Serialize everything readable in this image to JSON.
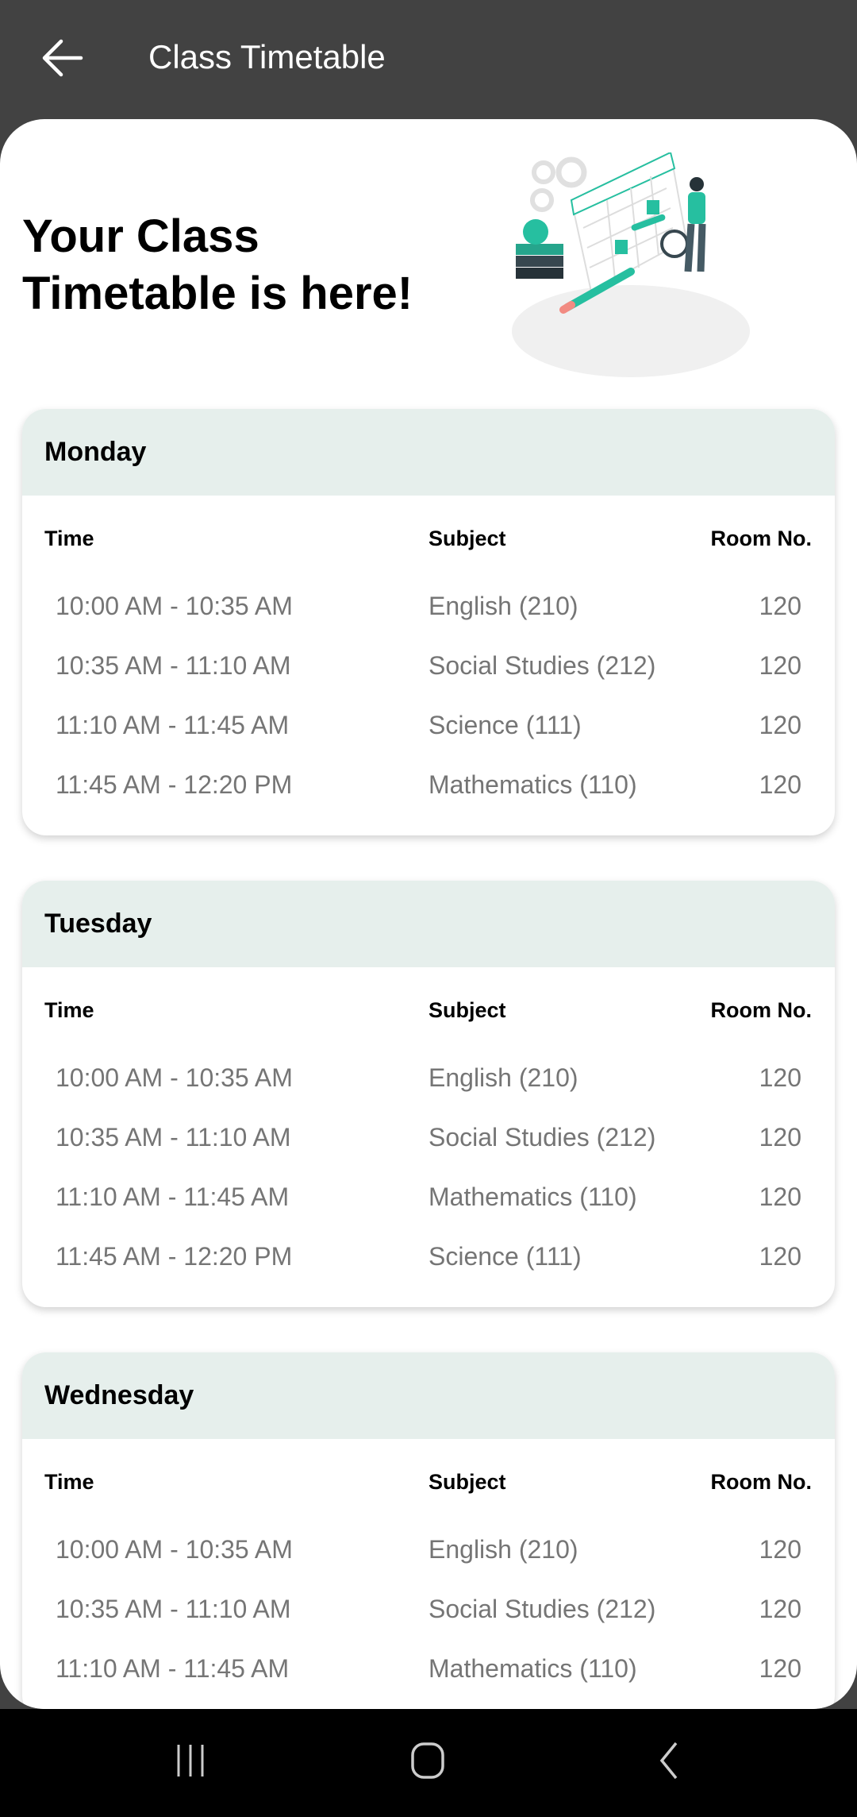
{
  "appbar": {
    "title": "Class Timetable",
    "back_icon": "arrow-left-icon"
  },
  "hero": {
    "line1": "Your Class",
    "line2": "Timetable is here!",
    "illustration": "calendar-schedule-illustration"
  },
  "columns": {
    "time": "Time",
    "subject": "Subject",
    "room": "Room No."
  },
  "days": [
    {
      "name": "Monday",
      "rows": [
        {
          "time": "10:00 AM - 10:35 AM",
          "subject": "English (210)",
          "room": "120"
        },
        {
          "time": "10:35 AM - 11:10 AM",
          "subject": "Social Studies (212)",
          "room": "120"
        },
        {
          "time": "11:10 AM - 11:45 AM",
          "subject": "Science (111)",
          "room": "120"
        },
        {
          "time": "11:45 AM - 12:20 PM",
          "subject": "Mathematics (110)",
          "room": "120"
        }
      ]
    },
    {
      "name": "Tuesday",
      "rows": [
        {
          "time": "10:00 AM - 10:35 AM",
          "subject": "English (210)",
          "room": "120"
        },
        {
          "time": "10:35 AM - 11:10 AM",
          "subject": "Social Studies (212)",
          "room": "120"
        },
        {
          "time": "11:10 AM - 11:45 AM",
          "subject": "Mathematics (110)",
          "room": "120"
        },
        {
          "time": "11:45 AM - 12:20 PM",
          "subject": "Science (111)",
          "room": "120"
        }
      ]
    },
    {
      "name": "Wednesday",
      "rows": [
        {
          "time": "10:00 AM - 10:35 AM",
          "subject": "English (210)",
          "room": "120"
        },
        {
          "time": "10:35 AM - 11:10 AM",
          "subject": "Social Studies (212)",
          "room": "120"
        },
        {
          "time": "11:10 AM - 11:45 AM",
          "subject": "Mathematics (110)",
          "room": "120"
        }
      ]
    }
  ],
  "colors": {
    "appbar": "#424242",
    "card_header": "#e6efec",
    "accent": "#26bfa0",
    "row_text": "#757575"
  },
  "navbar": {
    "recent_icon": "recent-apps-icon",
    "home_icon": "home-icon",
    "back_icon": "nav-back-icon"
  }
}
